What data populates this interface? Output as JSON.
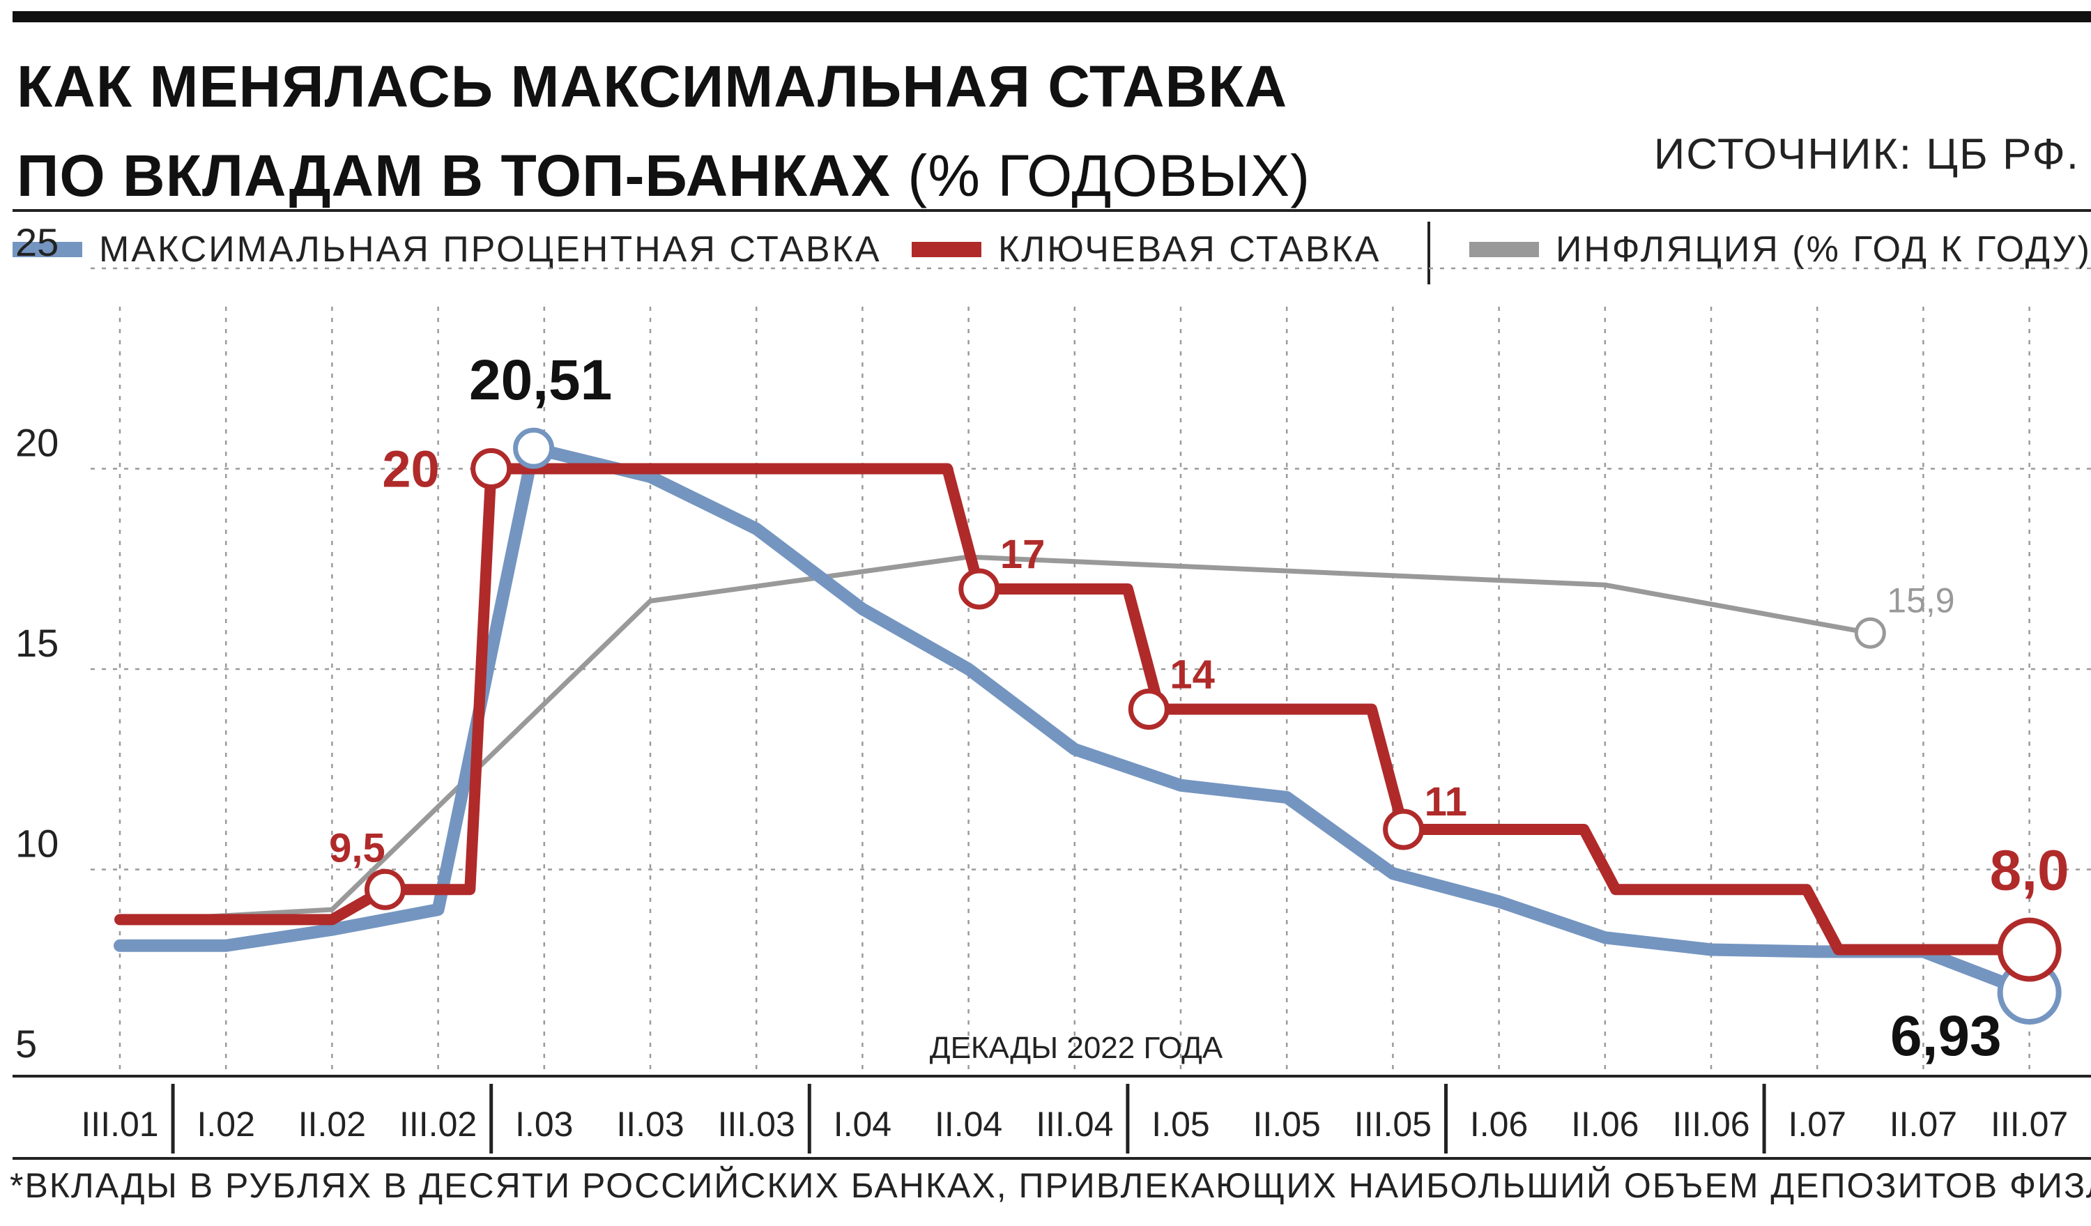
{
  "header": {
    "title_line1": "КАК МЕНЯЛАСЬ МАКСИМАЛЬНАЯ СТАВКА",
    "title_line2_bold": "ПО ВКЛАДАМ В ТОП-БАНКАХ",
    "title_line2_light": "(% ГОДОВЫХ)",
    "source": "ИСТОЧНИК: ЦБ РФ."
  },
  "legend": [
    {
      "label": "МАКСИМАЛЬНАЯ ПРОЦЕНТНАЯ СТАВКА",
      "color": "#7495c0"
    },
    {
      "label": "КЛЮЧЕВАЯ СТАВКА",
      "color": "#b02a2a"
    },
    {
      "label": "ИНФЛЯЦИЯ (% ГОД К ГОДУ)",
      "color": "#999999"
    }
  ],
  "footnote": "*ВКЛАДЫ В РУБЛЯХ В ДЕСЯТИ РОССИЙСКИХ БАНКАХ, ПРИВЛЕКАЮЩИХ НАИБОЛЬШИЙ ОБЪЕМ ДЕПОЗИТОВ ФИЗЛИЦ.",
  "chart_data": {
    "type": "line",
    "xlabel": "ДЕКАДЫ 2022 ГОДА",
    "ylabel": "",
    "ylim": [
      5,
      25
    ],
    "yticks": [
      "5",
      "10",
      "15",
      "20",
      "25"
    ],
    "grid": true,
    "categories": [
      "III.01",
      "I.02",
      "II.02",
      "III.02",
      "I.03",
      "II.03",
      "III.03",
      "I.04",
      "II.04",
      "III.04",
      "I.05",
      "II.05",
      "III.05",
      "I.06",
      "II.06",
      "III.06",
      "I.07",
      "II.07",
      "III.07"
    ],
    "month_separators_after": [
      0,
      3,
      6,
      9,
      12,
      15
    ],
    "series": [
      {
        "name": "МАКСИМАЛЬНАЯ ПРОЦЕНТНАЯ СТАВКА",
        "color": "#7495c0",
        "points": [
          [
            0,
            8.1
          ],
          [
            1,
            8.1
          ],
          [
            2,
            8.5
          ],
          [
            3,
            9.0
          ],
          [
            3.9,
            20.51
          ],
          [
            5,
            19.8
          ],
          [
            6,
            18.5
          ],
          [
            7,
            16.5
          ],
          [
            8,
            15.0
          ],
          [
            9,
            13.0
          ],
          [
            10,
            12.1
          ],
          [
            11,
            11.8
          ],
          [
            12,
            9.9
          ],
          [
            13,
            9.2
          ],
          [
            14,
            8.3
          ],
          [
            15,
            8.0
          ],
          [
            16,
            7.95
          ],
          [
            17,
            7.95
          ],
          [
            18,
            6.93
          ]
        ],
        "markers": [
          {
            "x": 3.9,
            "y": 20.51,
            "label": "20,51"
          },
          {
            "x": 18,
            "y": 6.93,
            "label": "6,93"
          }
        ]
      },
      {
        "name": "КЛЮЧЕВАЯ СТАВКА",
        "color": "#b02a2a",
        "points": [
          [
            0,
            8.75
          ],
          [
            2,
            8.75
          ],
          [
            2.5,
            9.5
          ],
          [
            3.3,
            9.5
          ],
          [
            3.5,
            20
          ],
          [
            7.8,
            20
          ],
          [
            8.1,
            17
          ],
          [
            9.5,
            17
          ],
          [
            9.8,
            14
          ],
          [
            11.8,
            14
          ],
          [
            12.1,
            11
          ],
          [
            13.8,
            11
          ],
          [
            14.1,
            9.5
          ],
          [
            15.9,
            9.5
          ],
          [
            16.2,
            8.0
          ],
          [
            18,
            8.0
          ]
        ],
        "markers": [
          {
            "x": 2.5,
            "y": 9.5,
            "label": "9,5"
          },
          {
            "x": 3.5,
            "y": 20,
            "label": "20"
          },
          {
            "x": 8.1,
            "y": 17,
            "label": "17"
          },
          {
            "x": 9.7,
            "y": 14,
            "label": "14"
          },
          {
            "x": 12.1,
            "y": 11,
            "label": "11"
          },
          {
            "x": 18,
            "y": 8.0,
            "label": "8,0"
          }
        ]
      },
      {
        "name": "ИНФЛЯЦИЯ (% ГОД К ГОДУ)",
        "color": "#999999",
        "points": [
          [
            0,
            8.7
          ],
          [
            2,
            9.0
          ],
          [
            5,
            16.7
          ],
          [
            8,
            17.8
          ],
          [
            14,
            17.1
          ],
          [
            16.5,
            15.9
          ]
        ],
        "markers": [
          {
            "x": 16.5,
            "y": 15.9,
            "label": "15,9"
          }
        ]
      }
    ]
  }
}
